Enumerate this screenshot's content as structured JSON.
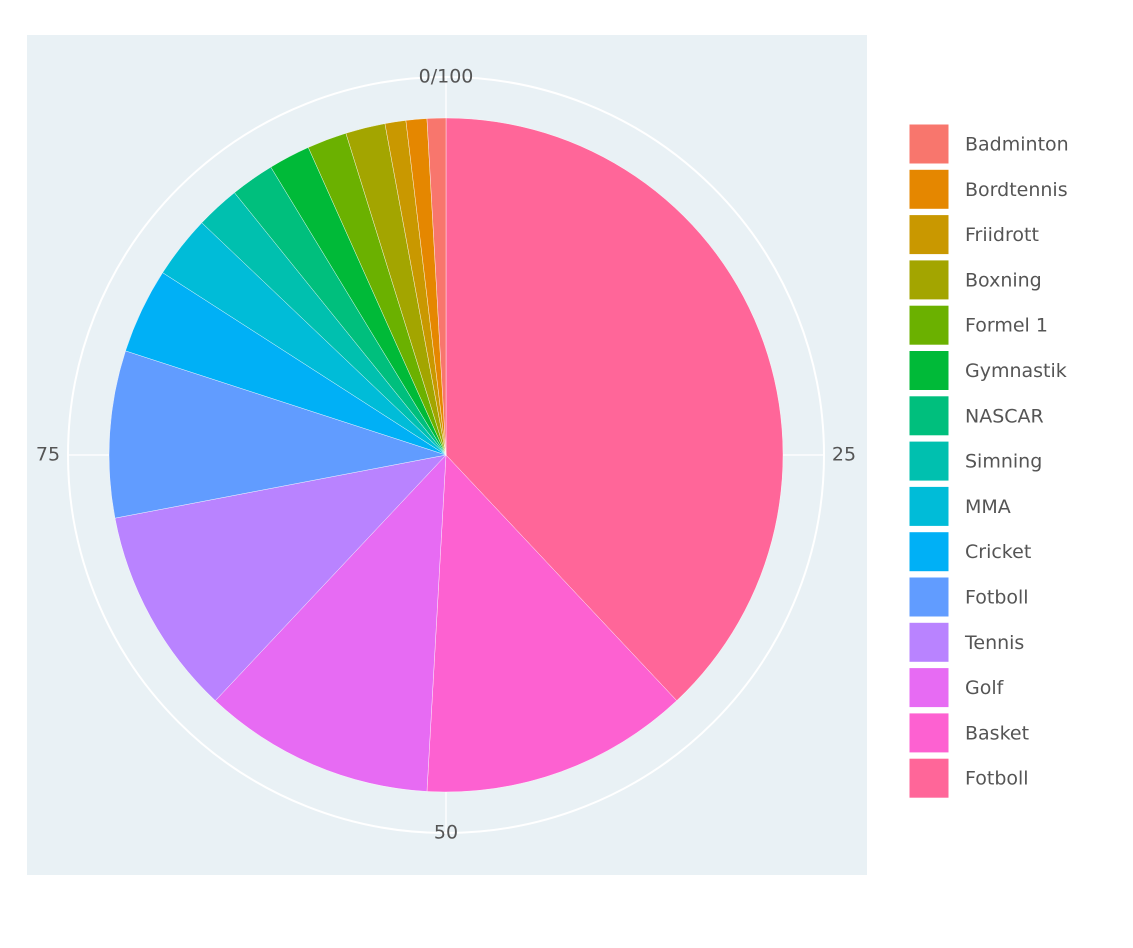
{
  "chart_data": {
    "type": "pie",
    "categories": [
      "Badminton",
      "Bordtennis",
      "Friidrott",
      "Boxning",
      "Formel 1",
      "Gymnastik",
      "NASCAR",
      "Simning",
      "MMA",
      "Cricket",
      "Fotboll",
      "Tennis",
      "Golf",
      "Basket",
      "Fotboll"
    ],
    "values": [
      0.9,
      1,
      1,
      1.9,
      1.9,
      2,
      2.1,
      2.1,
      3,
      4.1,
      8,
      10,
      11.1,
      12.9,
      38
    ],
    "colors": [
      "#f8766d",
      "#e58700",
      "#c99800",
      "#a3a500",
      "#6bb100",
      "#00ba38",
      "#00bf7d",
      "#00c0af",
      "#00bcd8",
      "#00b0f6",
      "#619cff",
      "#b983ff",
      "#e76bf3",
      "#fd61d1",
      "#ff6699"
    ],
    "angularlim": [
      0,
      100
    ],
    "angularticks": [
      {
        "value": 0,
        "label": "0/100"
      },
      25,
      50,
      75
    ],
    "direction": "clockwise"
  }
}
